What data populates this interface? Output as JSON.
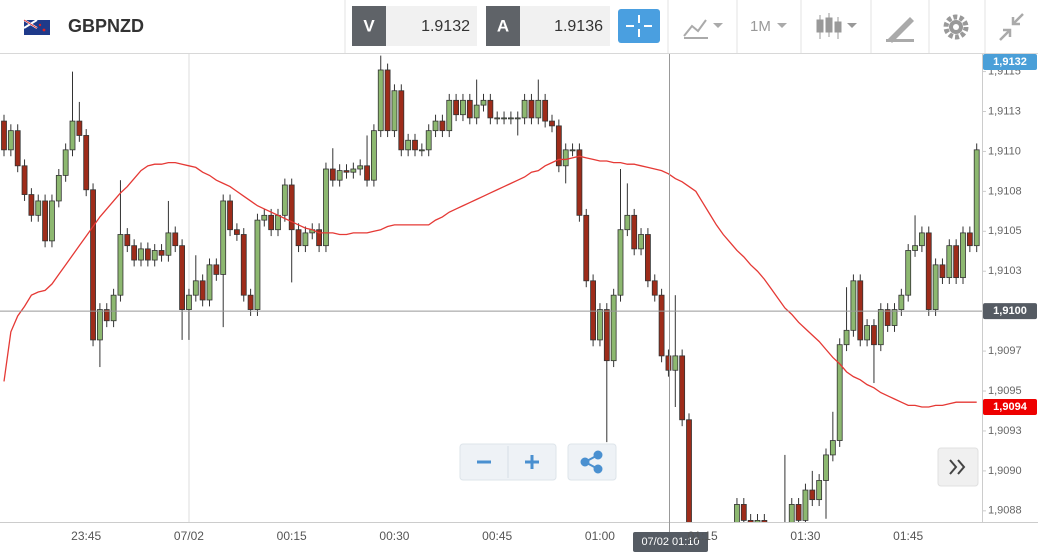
{
  "toolbar": {
    "symbol": "GBPNZD",
    "bid_label": "V",
    "bid": 1.9132,
    "ask_label": "A",
    "ask": 1.9136,
    "timeframe": "1M"
  },
  "chart_data": {
    "type": "candlestick",
    "categories": [
      null,
      null,
      null,
      null,
      null,
      null,
      null,
      null,
      null,
      null,
      null,
      null,
      "23:45",
      null,
      null,
      null,
      null,
      null,
      null,
      null,
      null,
      null,
      null,
      null,
      null,
      null,
      null,
      "07/02",
      null,
      null,
      null,
      null,
      null,
      null,
      null,
      null,
      null,
      null,
      null,
      null,
      null,
      null,
      "00:15",
      null,
      null,
      null,
      null,
      null,
      null,
      null,
      null,
      null,
      null,
      null,
      null,
      null,
      null,
      "00:30",
      null,
      null,
      null,
      null,
      null,
      null,
      null,
      null,
      null,
      null,
      null,
      null,
      null,
      null,
      "00:45",
      null,
      null,
      null,
      null,
      null,
      null,
      null,
      null,
      null,
      null,
      null,
      null,
      null,
      null,
      "01:00",
      null,
      null,
      null,
      null,
      null,
      null,
      null,
      null,
      null,
      null,
      null,
      null,
      null,
      null,
      "01:15",
      null,
      null,
      null,
      null,
      null,
      null,
      null,
      null,
      null,
      null,
      null,
      null,
      null,
      null,
      "01:30",
      null,
      null,
      null,
      null,
      null,
      null,
      null,
      null,
      null,
      null,
      null,
      null,
      null,
      null,
      "01:45",
      null,
      null,
      null,
      null,
      null,
      null,
      null,
      null,
      null,
      null
    ],
    "open": [
      1.91119,
      1.91101,
      1.91113,
      1.91091,
      1.91073,
      1.9106,
      1.91069,
      1.91044,
      1.91069,
      1.91085,
      1.91101,
      1.91119,
      1.9111,
      1.91076,
      1.90982,
      1.91001,
      1.90994,
      1.9101,
      1.91048,
      1.91041,
      1.91032,
      1.91039,
      1.91032,
      1.91038,
      1.91035,
      1.91049,
      1.91041,
      1.91001,
      1.9101,
      1.91019,
      1.91007,
      1.91029,
      1.91023,
      1.91069,
      1.91051,
      1.91048,
      1.9101,
      1.91001,
      1.91057,
      1.9106,
      1.91051,
      1.9106,
      1.91079,
      1.91051,
      1.91041,
      1.91049,
      1.91051,
      1.91041,
      1.91089,
      1.91082,
      1.91088,
      1.91087,
      1.91089,
      1.91091,
      1.91082,
      1.91113,
      1.91151,
      1.91113,
      1.91138,
      1.91101,
      1.91107,
      1.91101,
      1.91101,
      1.91113,
      1.91119,
      1.91113,
      1.91132,
      1.91123,
      1.91132,
      1.91121,
      1.91129,
      1.91132,
      1.91121,
      1.91121,
      1.91121,
      1.91121,
      1.91121,
      1.91132,
      1.91121,
      1.91132,
      1.91119,
      1.91116,
      1.91091,
      1.91101,
      1.91101,
      1.9106,
      1.91019,
      1.90982,
      1.91001,
      1.90969,
      1.9101,
      1.91051,
      1.9106,
      1.91039,
      1.91048,
      1.91019,
      1.9101,
      1.90972,
      1.90963,
      1.90972,
      1.90932,
      1.90857,
      1.90854,
      1.90844,
      1.90838,
      1.90835,
      1.90844,
      1.9086,
      1.90879,
      1.90869,
      1.90866,
      1.90869,
      1.90863,
      1.90857,
      1.9086,
      1.90866,
      1.90879,
      1.90869,
      1.90888,
      1.90882,
      1.90894,
      1.9091,
      1.90919,
      1.90979,
      1.90988,
      1.91019,
      1.90982,
      1.90991,
      1.90979,
      1.91001,
      1.90991,
      1.91001,
      1.9101,
      1.91038,
      1.91041,
      1.91049,
      1.91001,
      1.91029,
      1.91021,
      1.91041,
      1.91021,
      1.91049,
      1.91041
    ],
    "high": [
      1.91123,
      1.91117,
      1.91117,
      1.91095,
      1.91077,
      1.91073,
      1.91073,
      1.91073,
      1.91089,
      1.91105,
      1.9115,
      1.91131,
      1.91114,
      1.9108,
      1.91005,
      1.91005,
      1.91014,
      1.91082,
      1.91052,
      1.91045,
      1.91043,
      1.91043,
      1.91042,
      1.91042,
      1.91069,
      1.91053,
      1.91045,
      1.91014,
      1.91035,
      1.91023,
      1.91033,
      1.91033,
      1.91073,
      1.91073,
      1.91055,
      1.91052,
      1.91014,
      1.91061,
      1.91064,
      1.91064,
      1.91064,
      1.91083,
      1.91083,
      1.91055,
      1.91053,
      1.91055,
      1.91055,
      1.91093,
      1.91102,
      1.91092,
      1.91092,
      1.91093,
      1.91095,
      1.9111,
      1.91117,
      1.9116,
      1.91155,
      1.91142,
      1.91142,
      1.91111,
      1.91111,
      1.91105,
      1.91117,
      1.91123,
      1.91123,
      1.91136,
      1.91136,
      1.91136,
      1.91136,
      1.91145,
      1.91136,
      1.91136,
      1.91125,
      1.91125,
      1.91125,
      1.91125,
      1.91136,
      1.91136,
      1.91145,
      1.91136,
      1.91123,
      1.9112,
      1.91105,
      1.91105,
      1.91105,
      1.91064,
      1.91023,
      1.91005,
      1.91005,
      1.91014,
      1.91089,
      1.9108,
      1.91064,
      1.91052,
      1.91052,
      1.91023,
      1.91014,
      1.90976,
      1.9101,
      1.90976,
      1.90936,
      1.90861,
      1.90858,
      1.90848,
      1.90842,
      1.90848,
      1.90864,
      1.90883,
      1.90883,
      1.90873,
      1.90873,
      1.90873,
      1.90867,
      1.90864,
      1.9091,
      1.90883,
      1.90883,
      1.90892,
      1.909,
      1.90898,
      1.90914,
      1.90937,
      1.90983,
      1.91015,
      1.91023,
      1.91023,
      1.90995,
      1.90995,
      1.91005,
      1.91005,
      1.91005,
      1.91014,
      1.91042,
      1.9106,
      1.91053,
      1.91053,
      1.91033,
      1.91033,
      1.91045,
      1.91045,
      1.91053,
      1.91053,
      1.91105
    ],
    "low": [
      1.91097,
      1.91097,
      1.91087,
      1.91069,
      1.91056,
      1.91056,
      1.9104,
      1.9104,
      1.91065,
      1.91081,
      1.91097,
      1.91106,
      1.91072,
      1.90978,
      1.90965,
      1.9099,
      1.9099,
      1.91006,
      1.91037,
      1.91028,
      1.91028,
      1.91028,
      1.91028,
      1.91031,
      1.91031,
      1.91037,
      1.90982,
      1.90982,
      1.91006,
      1.91003,
      1.91003,
      1.91019,
      1.9099,
      1.91047,
      1.91044,
      1.91006,
      1.90997,
      1.90997,
      1.91053,
      1.91047,
      1.91047,
      1.91056,
      1.91018,
      1.91037,
      1.91037,
      1.91045,
      1.91037,
      1.91037,
      1.91078,
      1.91078,
      1.91083,
      1.91083,
      1.91085,
      1.91078,
      1.91078,
      1.91109,
      1.91109,
      1.91109,
      1.91097,
      1.91097,
      1.91097,
      1.91097,
      1.91097,
      1.91109,
      1.91109,
      1.91109,
      1.91119,
      1.91119,
      1.91117,
      1.91117,
      1.91125,
      1.91117,
      1.91117,
      1.91117,
      1.91117,
      1.9111,
      1.91117,
      1.91117,
      1.91117,
      1.91115,
      1.91112,
      1.91087,
      1.9108,
      1.91097,
      1.91056,
      1.91015,
      1.90978,
      1.90978,
      1.90918,
      1.90965,
      1.91006,
      1.91047,
      1.91035,
      1.91035,
      1.91015,
      1.91006,
      1.90968,
      1.90959,
      1.9094,
      1.90928,
      1.90853,
      1.9085,
      1.9084,
      1.90834,
      1.90831,
      1.90831,
      1.9084,
      1.90856,
      1.90865,
      1.90862,
      1.90862,
      1.90859,
      1.90853,
      1.90853,
      1.90856,
      1.90862,
      1.90865,
      1.90865,
      1.90878,
      1.90878,
      1.9087,
      1.90906,
      1.90915,
      1.90975,
      1.90984,
      1.90978,
      1.90978,
      1.90955,
      1.90975,
      1.90987,
      1.90987,
      1.90997,
      1.91006,
      1.91034,
      1.91037,
      1.90997,
      1.90997,
      1.91017,
      1.91017,
      1.91017,
      1.91017,
      1.91037,
      1.91037
    ],
    "close": [
      1.91101,
      1.91113,
      1.91091,
      1.91073,
      1.9106,
      1.91069,
      1.91044,
      1.91069,
      1.91085,
      1.91101,
      1.91119,
      1.9111,
      1.91076,
      1.90982,
      1.91001,
      1.90994,
      1.9101,
      1.91048,
      1.91041,
      1.91032,
      1.91039,
      1.91032,
      1.91038,
      1.91035,
      1.91049,
      1.91041,
      1.91001,
      1.9101,
      1.91019,
      1.91007,
      1.91029,
      1.91023,
      1.91069,
      1.91051,
      1.91048,
      1.9101,
      1.91001,
      1.91057,
      1.9106,
      1.91051,
      1.9106,
      1.91079,
      1.91051,
      1.91041,
      1.91049,
      1.91051,
      1.91041,
      1.91089,
      1.91082,
      1.91088,
      1.91087,
      1.91089,
      1.91091,
      1.91082,
      1.91113,
      1.91151,
      1.91113,
      1.91138,
      1.91101,
      1.91107,
      1.91101,
      1.91101,
      1.91113,
      1.91119,
      1.91113,
      1.91132,
      1.91123,
      1.91132,
      1.91121,
      1.91129,
      1.91132,
      1.91121,
      1.91121,
      1.91121,
      1.91121,
      1.91121,
      1.91132,
      1.91121,
      1.91132,
      1.91119,
      1.91116,
      1.91091,
      1.91101,
      1.91101,
      1.9106,
      1.91019,
      1.90982,
      1.91001,
      1.90969,
      1.9101,
      1.91051,
      1.9106,
      1.91039,
      1.91048,
      1.91019,
      1.9101,
      1.90972,
      1.90963,
      1.90972,
      1.90932,
      1.90857,
      1.90854,
      1.90844,
      1.90838,
      1.90835,
      1.90844,
      1.9086,
      1.90879,
      1.90869,
      1.90866,
      1.90869,
      1.90863,
      1.90857,
      1.9086,
      1.90866,
      1.90879,
      1.90869,
      1.90888,
      1.90882,
      1.90894,
      1.9091,
      1.90919,
      1.90979,
      1.90988,
      1.91019,
      1.90982,
      1.90991,
      1.90979,
      1.91001,
      1.90991,
      1.91001,
      1.9101,
      1.91038,
      1.91041,
      1.91049,
      1.91001,
      1.91029,
      1.91021,
      1.91041,
      1.91021,
      1.91049,
      1.91041,
      1.91101
    ],
    "up_color": "#8db870",
    "down_color": "#9e2c1a",
    "moving_average": {
      "color": "#e53935",
      "values": [
        1.90956,
        1.90987,
        1.90997,
        1.91003,
        1.9101,
        1.91012,
        1.91013,
        1.91017,
        1.91023,
        1.91029,
        1.91035,
        1.91041,
        1.91047,
        1.91053,
        1.91059,
        1.91064,
        1.91069,
        1.91074,
        1.91078,
        1.91083,
        1.91088,
        1.91091,
        1.91092,
        1.91092,
        1.91093,
        1.91093,
        1.91092,
        1.91091,
        1.9109,
        1.91087,
        1.91085,
        1.91082,
        1.9108,
        1.91078,
        1.91075,
        1.91072,
        1.91069,
        1.91066,
        1.91064,
        1.91062,
        1.9106,
        1.91058,
        1.91056,
        1.91054,
        1.91052,
        1.91051,
        1.91049,
        1.91049,
        1.91049,
        1.91048,
        1.91048,
        1.91049,
        1.91049,
        1.91049,
        1.9105,
        1.91051,
        1.91053,
        1.91054,
        1.91054,
        1.91054,
        1.91054,
        1.91054,
        1.91054,
        1.91057,
        1.91059,
        1.91062,
        1.91064,
        1.91066,
        1.91068,
        1.9107,
        1.91072,
        1.91074,
        1.91076,
        1.91078,
        1.9108,
        1.91082,
        1.91084,
        1.91087,
        1.91088,
        1.91091,
        1.91093,
        1.91095,
        1.91095,
        1.91096,
        1.91097,
        1.91096,
        1.91095,
        1.91094,
        1.91094,
        1.91093,
        1.91093,
        1.91092,
        1.91092,
        1.91091,
        1.9109,
        1.91089,
        1.91088,
        1.91086,
        1.91083,
        1.91081,
        1.91078,
        1.91075,
        1.91068,
        1.91061,
        1.91054,
        1.91048,
        1.91043,
        1.91038,
        1.91034,
        1.91029,
        1.91025,
        1.9102,
        1.91014,
        1.91008,
        1.91002,
        1.90998,
        1.90993,
        1.90989,
        1.90985,
        1.90981,
        1.90976,
        1.90971,
        1.90967,
        1.90962,
        1.90959,
        1.90957,
        1.90954,
        1.90952,
        1.90949,
        1.90947,
        1.90945,
        1.90943,
        1.90941,
        1.90941,
        1.9094,
        1.9094,
        1.90941,
        1.90941,
        1.90942,
        1.90943,
        1.90943,
        1.90943,
        1.90943
      ]
    },
    "ylim": [
      1.90868,
      1.91161
    ],
    "yticks": [
      {
        "value": 1.9115,
        "label": "1,9115"
      },
      {
        "value": 1.91125,
        "label": "1,9113"
      },
      {
        "value": 1.911,
        "label": "1,9110"
      },
      {
        "value": 1.91075,
        "label": "1,9108"
      },
      {
        "value": 1.9105,
        "label": "1,9105"
      },
      {
        "value": 1.91025,
        "label": "1,9103"
      },
      {
        "value": 1.90975,
        "label": "1,9097"
      },
      {
        "value": 1.9095,
        "label": "1,9095"
      },
      {
        "value": 1.90925,
        "label": "1,9093"
      },
      {
        "value": 1.909,
        "label": "1,9090"
      },
      {
        "value": 1.90875,
        "label": "1,9088"
      }
    ],
    "price_badges": [
      {
        "value": 1.9132,
        "label": "1,9132",
        "color": "#4a9fd8"
      },
      {
        "value": 1.91,
        "label": "1,9100",
        "color": "#555b63"
      },
      {
        "value": 1.9094,
        "label": "1,9094",
        "color": "#ee0000"
      }
    ],
    "crosshair_label": "07/02 01:10"
  }
}
